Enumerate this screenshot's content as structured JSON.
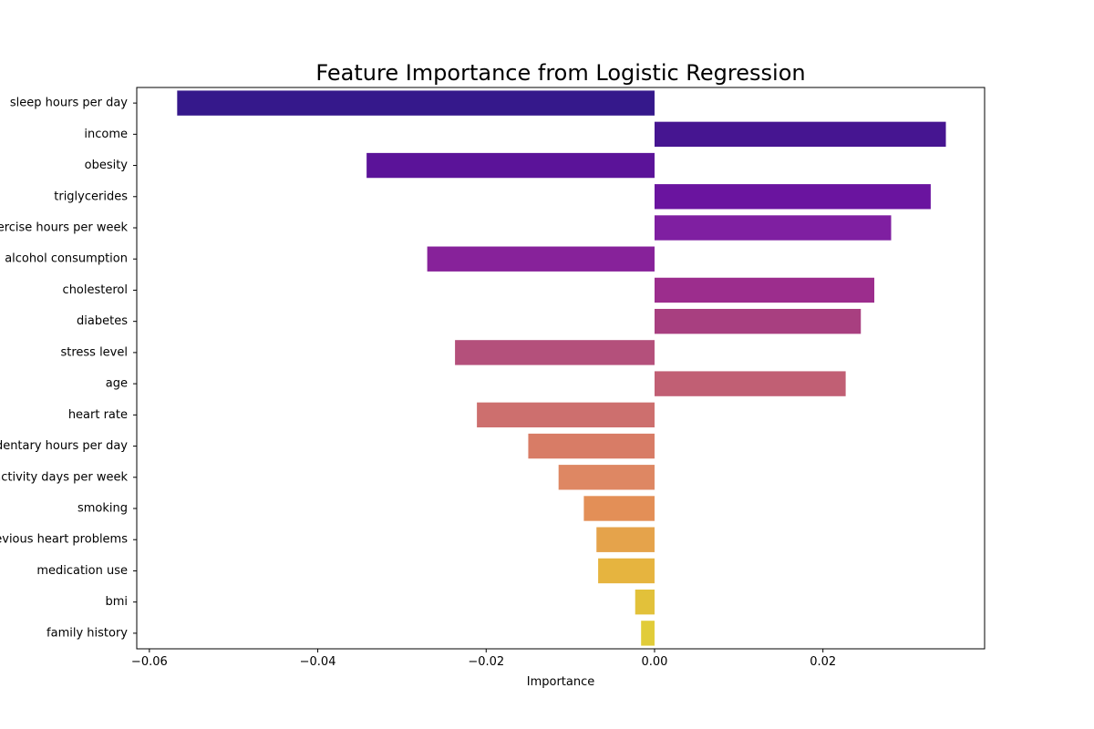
{
  "chart_data": {
    "type": "bar",
    "orientation": "horizontal",
    "title": "Feature Importance from Logistic Regression",
    "xlabel": "Importance",
    "ylabel": "",
    "xlim": [
      -0.0615,
      0.0392
    ],
    "x_ticks": [
      -0.06,
      -0.04,
      -0.02,
      0.0,
      0.02
    ],
    "x_tick_labels": [
      "−0.06",
      "−0.04",
      "−0.02",
      "0.00",
      "0.02"
    ],
    "grid": false,
    "legend": "none",
    "categories": [
      "sleep hours per day",
      "income",
      "obesity",
      "triglycerides",
      "exercise hours per week",
      "alcohol consumption",
      "cholesterol",
      "diabetes",
      "stress level",
      "age",
      "heart rate",
      "sedentary hours per day",
      "physical activity days per week",
      "smoking",
      "previous heart problems",
      "medication use",
      "bmi",
      "family history"
    ],
    "values": [
      -0.0567,
      0.0346,
      -0.0342,
      0.0328,
      0.0281,
      -0.027,
      0.0261,
      0.0245,
      -0.0237,
      0.0227,
      -0.0211,
      -0.015,
      -0.0114,
      -0.0084,
      -0.0069,
      -0.0067,
      -0.0023,
      -0.0016
    ],
    "colors": [
      "#35188b",
      "#461591",
      "#5b1399",
      "#6a149f",
      "#7f1fa1",
      "#87229a",
      "#9c2d8d",
      "#a83f80",
      "#b4507b",
      "#c15f74",
      "#cd6f6e",
      "#d87c66",
      "#de8763",
      "#e38f57",
      "#e5a34b",
      "#e6b43f",
      "#e2c13a",
      "#e1cc39"
    ]
  }
}
